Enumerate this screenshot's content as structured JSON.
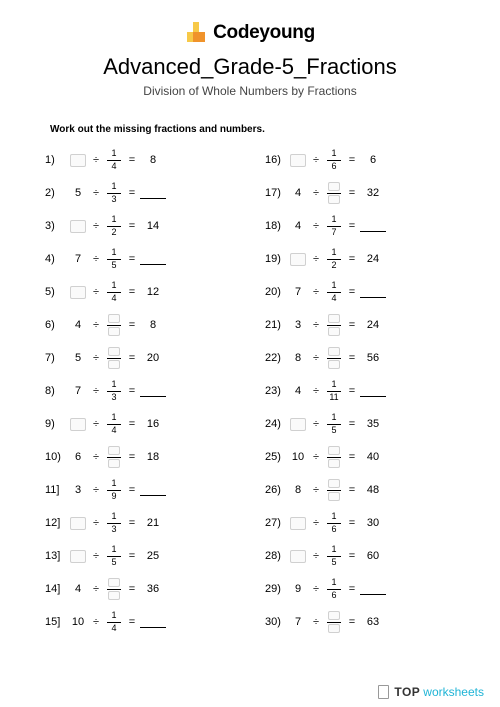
{
  "brand": {
    "name": "Codeyoung",
    "logo_colors": {
      "yellow": "#f7c948",
      "orange": "#f0932b"
    }
  },
  "title": "Advanced_Grade-5_Fractions",
  "subtitle": "Division of Whole Numbers by Fractions",
  "instruction": "Work out the missing fractions and numbers.",
  "footer": {
    "word1": "TOP",
    "word2": "worksheets"
  },
  "style": {
    "background": "#ffffff",
    "text_color": "#000000",
    "subtitle_color": "#444444",
    "blank_box_border": "#d0d0d0",
    "blank_box_bg": "#fafafa",
    "footer_color1": "#333333",
    "footer_color2": "#1fb4d6",
    "title_fontsize": 22,
    "subtitle_fontsize": 12,
    "body_fontsize": 11
  },
  "problems": [
    {
      "n": "1)",
      "whole": null,
      "num": "1",
      "den": "4",
      "ans": "8"
    },
    {
      "n": "2)",
      "whole": "5",
      "num": "1",
      "den": "3",
      "ans": null
    },
    {
      "n": "3)",
      "whole": null,
      "num": "1",
      "den": "2",
      "ans": "14"
    },
    {
      "n": "4)",
      "whole": "7",
      "num": "1",
      "den": "5",
      "ans": null
    },
    {
      "n": "5)",
      "whole": null,
      "num": "1",
      "den": "4",
      "ans": "12"
    },
    {
      "n": "6)",
      "whole": "4",
      "num": null,
      "den": null,
      "ans": "8"
    },
    {
      "n": "7)",
      "whole": "5",
      "num": null,
      "den": null,
      "ans": "20"
    },
    {
      "n": "8)",
      "whole": "7",
      "num": "1",
      "den": "3",
      "ans": null
    },
    {
      "n": "9)",
      "whole": null,
      "num": "1",
      "den": "4",
      "ans": "16"
    },
    {
      "n": "10)",
      "whole": "6",
      "num": null,
      "den": null,
      "ans": "18"
    },
    {
      "n": "11]",
      "whole": "3",
      "num": "1",
      "den": "9",
      "ans": null
    },
    {
      "n": "12]",
      "whole": null,
      "num": "1",
      "den": "3",
      "ans": "21"
    },
    {
      "n": "13]",
      "whole": null,
      "num": "1",
      "den": "5",
      "ans": "25"
    },
    {
      "n": "14]",
      "whole": "4",
      "num": null,
      "den": null,
      "ans": "36"
    },
    {
      "n": "15]",
      "whole": "10",
      "num": "1",
      "den": "4",
      "ans": null
    },
    {
      "n": "16)",
      "whole": null,
      "num": "1",
      "den": "6",
      "ans": "6"
    },
    {
      "n": "17)",
      "whole": "4",
      "num": null,
      "den": null,
      "ans": "32"
    },
    {
      "n": "18)",
      "whole": "4",
      "num": "1",
      "den": "7",
      "ans": null
    },
    {
      "n": "19)",
      "whole": null,
      "num": "1",
      "den": "2",
      "ans": "24"
    },
    {
      "n": "20)",
      "whole": "7",
      "num": "1",
      "den": "4",
      "ans": null
    },
    {
      "n": "21)",
      "whole": "3",
      "num": null,
      "den": null,
      "ans": "24"
    },
    {
      "n": "22)",
      "whole": "8",
      "num": null,
      "den": null,
      "ans": "56"
    },
    {
      "n": "23)",
      "whole": "4",
      "num": "1",
      "den": "11",
      "ans": null
    },
    {
      "n": "24)",
      "whole": null,
      "num": "1",
      "den": "5",
      "ans": "35"
    },
    {
      "n": "25)",
      "whole": "10",
      "num": null,
      "den": null,
      "ans": "40"
    },
    {
      "n": "26)",
      "whole": "8",
      "num": null,
      "den": null,
      "ans": "48"
    },
    {
      "n": "27)",
      "whole": null,
      "num": "1",
      "den": "6",
      "ans": "30"
    },
    {
      "n": "28)",
      "whole": null,
      "num": "1",
      "den": "5",
      "ans": "60"
    },
    {
      "n": "29)",
      "whole": "9",
      "num": "1",
      "den": "6",
      "ans": null
    },
    {
      "n": "30)",
      "whole": "7",
      "num": null,
      "den": null,
      "ans": "63"
    }
  ]
}
